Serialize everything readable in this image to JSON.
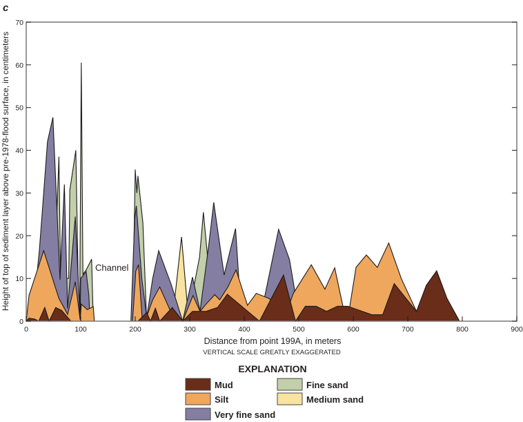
{
  "panel_label": "C",
  "chart_data": {
    "type": "area",
    "title": "",
    "xlabel": "Distance from point 199A, in meters",
    "ylabel": "Height of top of sediment layer above pre-1978-flood surface, in centimeters",
    "subtitle": "VERTICAL SCALE GREATLY EXAGGERATED",
    "xlim": [
      0,
      900
    ],
    "ylim": [
      0,
      70
    ],
    "xticks": [
      0,
      100,
      200,
      300,
      400,
      500,
      600,
      700,
      800,
      900
    ],
    "yticks": [
      0,
      10,
      20,
      30,
      40,
      50,
      60,
      70
    ],
    "annotations": [
      {
        "text": "Channel",
        "x": 125,
        "y": 13
      }
    ],
    "legend_title": "EXPLANATION",
    "series": [
      {
        "name": "Fine sand",
        "color": "#c3cfaa",
        "segments": [
          [
            [
              52,
              10
            ],
            [
              60,
              38.5
            ],
            [
              63,
              10
            ],
            [
              78,
              10
            ],
            [
              80,
              30.7
            ],
            [
              91,
              40
            ],
            [
              96,
              5
            ],
            [
              97,
              0
            ]
          ],
          [
            [
              98,
              0
            ],
            [
              101,
              60.5
            ],
            [
              104,
              11
            ],
            [
              110,
              12
            ],
            [
              120,
              14.5
            ],
            [
              123,
              0
            ]
          ],
          [
            [
              195,
              0
            ],
            [
              200,
              35.5
            ],
            [
              203,
              30
            ],
            [
              205,
              34
            ],
            [
              214,
              23
            ],
            [
              221,
              0
            ]
          ],
          [
            [
              300,
              3
            ],
            [
              318,
              15
            ],
            [
              325,
              25.5
            ],
            [
              340,
              5
            ]
          ]
        ]
      },
      {
        "name": "Medium sand",
        "color": "#f8e3a0",
        "segments": [
          [
            [
              268,
              0
            ],
            [
              285,
              19.7
            ],
            [
              298,
              0
            ]
          ]
        ]
      },
      {
        "name": "Very fine sand",
        "color": "#857ea3",
        "segments": [
          [
            [
              15,
              5
            ],
            [
              24,
              16.5
            ],
            [
              32,
              30
            ],
            [
              39,
              42
            ],
            [
              49,
              47.7
            ],
            [
              62,
              9.7
            ],
            [
              70,
              32
            ],
            [
              76,
              3
            ],
            [
              90,
              24.5
            ],
            [
              99,
              0
            ],
            [
              100,
              10
            ],
            [
              110,
              11.6
            ],
            [
              115,
              6
            ],
            [
              117,
              0
            ]
          ],
          [
            [
              192,
              0
            ],
            [
              199,
              24
            ],
            [
              202,
              27
            ],
            [
              212,
              10
            ],
            [
              220,
              2
            ],
            [
              221,
              0
            ]
          ],
          [
            [
              220,
              0
            ],
            [
              232,
              10
            ],
            [
              243,
              16.5
            ],
            [
              266,
              8.6
            ],
            [
              287,
              0
            ]
          ],
          [
            [
              287,
              0
            ],
            [
              305,
              10.3
            ],
            [
              319,
              2.4
            ],
            [
              335,
              18
            ],
            [
              344,
              27.8
            ],
            [
              363,
              10.8
            ],
            [
              384,
              21.7
            ],
            [
              395,
              0
            ]
          ],
          [
            [
              420,
              0
            ],
            [
              438,
              6
            ],
            [
              463,
              21.5
            ],
            [
              483,
              14.4
            ],
            [
              492,
              7.6
            ],
            [
              495,
              0
            ]
          ]
        ]
      },
      {
        "name": "Silt",
        "color": "#eea75d",
        "segments": [
          [
            [
              0,
              0
            ],
            [
              5,
              6
            ],
            [
              32,
              16.5
            ],
            [
              60,
              5.3
            ],
            [
              76,
              1.6
            ],
            [
              90,
              9.2
            ],
            [
              99,
              0.3
            ],
            [
              101,
              4
            ],
            [
              112,
              2.7
            ],
            [
              123,
              3.4
            ],
            [
              125,
              0
            ]
          ],
          [
            [
              195,
              0
            ],
            [
              201,
              11.7
            ],
            [
              206,
              13.2
            ],
            [
              213,
              0
            ]
          ],
          [
            [
              218,
              0
            ],
            [
              232,
              5
            ],
            [
              245,
              8
            ],
            [
              266,
              2
            ],
            [
              287,
              0
            ],
            [
              306,
              6
            ],
            [
              319,
              2.3
            ],
            [
              330,
              4
            ],
            [
              346,
              6.2
            ],
            [
              355,
              5
            ],
            [
              370,
              8
            ],
            [
              385,
              12
            ],
            [
              406,
              3.7
            ],
            [
              422,
              6.5
            ],
            [
              446,
              5.3
            ],
            [
              460,
              3
            ],
            [
              480,
              3
            ],
            [
              490,
              6.5
            ],
            [
              523,
              13.2
            ],
            [
              548,
              7.5
            ],
            [
              566,
              12.5
            ],
            [
              581,
              3.5
            ],
            [
              593,
              3
            ],
            [
              605,
              12.6
            ],
            [
              624,
              15.5
            ],
            [
              644,
              12.6
            ],
            [
              665,
              18.3
            ],
            [
              688,
              10
            ],
            [
              716,
              2.3
            ],
            [
              720,
              0
            ]
          ]
        ]
      },
      {
        "name": "Mud",
        "color": "#6a2d19",
        "segments": [
          [
            [
              0,
              0
            ],
            [
              5,
              0.7
            ],
            [
              15,
              0.5
            ],
            [
              23,
              0
            ],
            [
              34,
              3.2
            ],
            [
              42,
              0
            ],
            [
              54,
              3.2
            ],
            [
              65,
              2.5
            ],
            [
              82,
              0
            ]
          ],
          [
            [
              205,
              0
            ],
            [
              221,
              2
            ],
            [
              228,
              0
            ],
            [
              237,
              3
            ],
            [
              245,
              0
            ],
            [
              268,
              3.2
            ],
            [
              287,
              0
            ],
            [
              305,
              2.3
            ],
            [
              330,
              2.3
            ],
            [
              351,
              3.2
            ],
            [
              369,
              6.3
            ],
            [
              428,
              0
            ],
            [
              472,
              10.8
            ],
            [
              494,
              0
            ],
            [
              512,
              3.5
            ],
            [
              532,
              3.5
            ],
            [
              551,
              2.3
            ],
            [
              571,
              3.5
            ],
            [
              590,
              3.5
            ],
            [
              634,
              1.5
            ],
            [
              654,
              1.5
            ],
            [
              675,
              8.8
            ],
            [
              716,
              2.3
            ],
            [
              734,
              8.4
            ],
            [
              753,
              11.8
            ],
            [
              772,
              5.3
            ],
            [
              795,
              0
            ]
          ]
        ]
      }
    ],
    "legend_order": [
      "Mud",
      "Silt",
      "Very fine sand",
      "Fine sand",
      "Medium sand"
    ]
  }
}
